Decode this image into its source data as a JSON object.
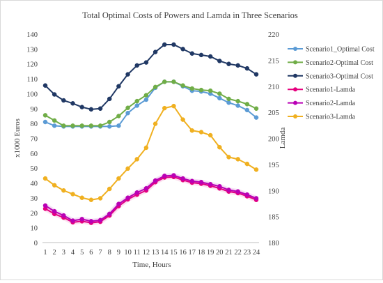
{
  "chart_data": {
    "type": "line",
    "title": "Total Optimal Costs of Powers and Lamda in Three Scenarios",
    "xlabel": "Time, Hours",
    "ylabel_left": "x1000 Euros",
    "ylabel_right": "Lamda",
    "x": [
      1,
      2,
      3,
      4,
      5,
      6,
      7,
      8,
      9,
      10,
      11,
      12,
      13,
      14,
      15,
      16,
      17,
      18,
      19,
      20,
      21,
      22,
      23,
      24
    ],
    "x_tick_labels": [
      "1",
      "2",
      "3",
      "4",
      "5",
      "6",
      "7",
      "8",
      "9",
      "10",
      "11",
      "12",
      "13",
      "14",
      "15",
      "16",
      "17",
      "18",
      "19",
      "20",
      "21",
      "22",
      "23",
      "24"
    ],
    "ylim_left": [
      0,
      140
    ],
    "yticks_left": [
      "0",
      "10",
      "20",
      "30",
      "40",
      "50",
      "60",
      "70",
      "80",
      "90",
      "100",
      "110",
      "120",
      "130",
      "140"
    ],
    "ylim_right": [
      180,
      220
    ],
    "yticks_right": [
      "180",
      "185",
      "190",
      "195",
      "200",
      "205",
      "210",
      "215",
      "220"
    ],
    "grid": false,
    "legend_position": "right",
    "series": [
      {
        "name": "Scenario1_Optimal Cost",
        "axis": "left",
        "color": "#5b9bd5",
        "values": [
          81,
          78.5,
          78,
          78,
          78,
          78,
          78,
          78,
          78.5,
          87,
          92,
          96,
          104,
          108,
          108,
          105,
          102,
          101.5,
          100,
          97,
          94,
          92,
          89,
          84
        ]
      },
      {
        "name": "Scenario2-Optimal Cost",
        "axis": "left",
        "color": "#70ad47",
        "values": [
          85.5,
          82,
          78.5,
          78.5,
          78.5,
          78.5,
          78.5,
          81,
          85,
          90.5,
          95,
          99,
          104.5,
          108,
          108,
          105.5,
          103.5,
          102.5,
          102,
          100,
          96.5,
          95,
          93,
          90
        ]
      },
      {
        "name": "Scenario3-Optimal Cost",
        "axis": "left",
        "color": "#203864",
        "values": [
          105.5,
          99.5,
          95.5,
          93.5,
          91,
          89.5,
          90,
          96.5,
          105,
          113,
          119,
          121,
          128,
          133,
          133,
          130,
          127,
          126,
          125,
          122,
          120,
          119,
          117,
          113
        ]
      },
      {
        "name": "Scenario1-Lamda",
        "axis": "right",
        "color": "#e6007e",
        "values": [
          186.5,
          185.5,
          184.8,
          183.9,
          184.1,
          183.8,
          184,
          185.2,
          187,
          188.3,
          189.2,
          190,
          191.6,
          192.5,
          192.6,
          192,
          191.5,
          191.3,
          190.9,
          190.4,
          189.8,
          189.5,
          188.9,
          188.2
        ]
      },
      {
        "name": "Scenario2-Lamda",
        "axis": "right",
        "color": "#b900b5",
        "values": [
          187.1,
          186,
          185.2,
          184.2,
          184.5,
          184.1,
          184.3,
          185.5,
          187.4,
          188.6,
          189.6,
          190.4,
          191.9,
          192.8,
          192.9,
          192.3,
          191.8,
          191.6,
          191.2,
          190.8,
          190.1,
          189.8,
          189.2,
          188.5
        ]
      },
      {
        "name": "Scenario3-Lamda",
        "axis": "right",
        "color": "#f0b020",
        "values": [
          192.3,
          191,
          190,
          189.3,
          188.6,
          188.2,
          188.5,
          190.3,
          192.3,
          194.2,
          196,
          198.2,
          202.8,
          205.8,
          206.2,
          203.6,
          201.5,
          201.2,
          200.6,
          198.3,
          196.4,
          196,
          195.1,
          194
        ]
      }
    ]
  }
}
